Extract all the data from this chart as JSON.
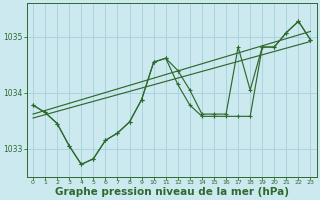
{
  "background_color": "#cde9f0",
  "grid_color": "#aad4df",
  "line_color": "#2d6a2d",
  "xlabel": "Graphe pression niveau de la mer (hPa)",
  "xlabel_fontsize": 7.5,
  "xlim": [
    -0.5,
    23.5
  ],
  "ylim": [
    1032.5,
    1035.6
  ],
  "yticks": [
    1033,
    1034,
    1035
  ],
  "xticks": [
    0,
    1,
    2,
    3,
    4,
    5,
    6,
    7,
    8,
    9,
    10,
    11,
    12,
    13,
    14,
    15,
    16,
    17,
    18,
    19,
    20,
    21,
    22,
    23
  ],
  "line_zigzag1": {
    "x": [
      0,
      1,
      2,
      3,
      4,
      5,
      6,
      7,
      8,
      9,
      10,
      11,
      12,
      13,
      14,
      15,
      16,
      17,
      18,
      19,
      20,
      21,
      22,
      23
    ],
    "y": [
      1033.78,
      1033.65,
      1033.45,
      1033.05,
      1032.72,
      1032.82,
      1033.15,
      1033.28,
      1033.48,
      1033.88,
      1034.55,
      1034.62,
      1034.4,
      1034.05,
      1033.62,
      1033.62,
      1033.62,
      1034.82,
      1034.05,
      1034.82,
      1034.82,
      1035.08,
      1035.28,
      1034.95
    ]
  },
  "line_zigzag2": {
    "x": [
      0,
      1,
      2,
      3,
      4,
      5,
      6,
      7,
      8,
      9,
      10,
      11,
      12,
      13,
      14,
      15,
      16,
      17,
      18,
      19,
      20,
      21,
      22,
      23
    ],
    "y": [
      1033.78,
      1033.65,
      1033.45,
      1033.05,
      1032.72,
      1032.82,
      1033.15,
      1033.28,
      1033.48,
      1033.88,
      1034.55,
      1034.62,
      1034.15,
      1033.78,
      1033.58,
      1033.58,
      1033.58,
      1033.58,
      1033.58,
      1034.82,
      1034.82,
      1035.08,
      1035.28,
      1034.95
    ]
  },
  "trend1": {
    "x": [
      0,
      23
    ],
    "y": [
      1033.55,
      1034.92
    ]
  },
  "trend2": {
    "x": [
      0,
      23
    ],
    "y": [
      1033.62,
      1035.1
    ]
  }
}
